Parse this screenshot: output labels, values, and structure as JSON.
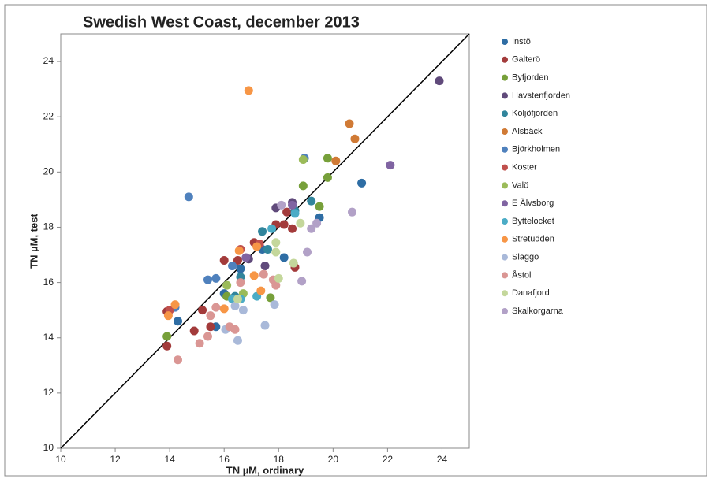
{
  "chart_data": {
    "type": "scatter",
    "title": "Swedish West Coast, december 2013",
    "x_label": "TN µM, ordinary",
    "y_label": "TN µM, test",
    "xlim": [
      10,
      25
    ],
    "ylim": [
      10,
      25
    ],
    "xticks": [
      10,
      12,
      14,
      16,
      18,
      20,
      22,
      24
    ],
    "yticks": [
      10,
      12,
      14,
      16,
      18,
      20,
      22,
      24
    ],
    "identity_line": true,
    "legend_position": "right",
    "series": [
      {
        "name": "Instö",
        "color": "#2E6DA4",
        "x": [
          21.05,
          19.5,
          18.2,
          16.6,
          17.4,
          14.3,
          16.0,
          15.7
        ],
        "values": [
          19.6,
          18.35,
          16.9,
          16.5,
          17.2,
          14.6,
          15.6,
          14.4
        ]
      },
      {
        "name": "Galterö",
        "color": "#A33B3B",
        "x": [
          18.3,
          17.9,
          18.2,
          18.5,
          16.5,
          16.0,
          15.2,
          14.9,
          15.5,
          13.9,
          13.9,
          18.6,
          17.1
        ],
        "values": [
          18.55,
          18.1,
          18.1,
          17.95,
          16.8,
          16.8,
          15.0,
          14.25,
          14.4,
          14.95,
          13.7,
          16.55,
          17.45
        ]
      },
      {
        "name": "Byfjorden",
        "color": "#77A03A",
        "x": [
          18.9,
          19.8,
          19.8,
          19.5,
          17.7,
          13.9,
          16.1
        ],
        "values": [
          19.5,
          20.5,
          19.8,
          18.75,
          15.45,
          14.05,
          15.5
        ]
      },
      {
        "name": "Havstenfjorden",
        "color": "#604A7B",
        "x": [
          23.9,
          18.5,
          17.9,
          17.5,
          16.9
        ],
        "values": [
          23.3,
          18.9,
          18.7,
          16.6,
          16.85
        ]
      },
      {
        "name": "Koljöfjorden",
        "color": "#31859C",
        "x": [
          19.2,
          18.6,
          17.4,
          17.6,
          16.6,
          16.4
        ],
        "values": [
          18.95,
          18.6,
          17.85,
          17.2,
          16.2,
          15.5
        ]
      },
      {
        "name": "Alsbäck",
        "color": "#D07A35",
        "x": [
          20.6,
          20.8,
          20.1
        ],
        "values": [
          21.75,
          21.2,
          20.4
        ]
      },
      {
        "name": "Björkholmen",
        "color": "#4F81BD",
        "x": [
          14.7,
          18.95,
          15.4,
          15.7,
          14.2,
          16.3
        ],
        "values": [
          19.1,
          20.5,
          16.1,
          16.15,
          15.1,
          16.6
        ]
      },
      {
        "name": "Koster",
        "color": "#C0504D",
        "x": [
          16.6,
          17.3,
          14.0
        ],
        "values": [
          17.2,
          17.4,
          15.0
        ]
      },
      {
        "name": "Valö",
        "color": "#9BBB59",
        "x": [
          18.9,
          16.7,
          16.1
        ],
        "values": [
          20.45,
          15.6,
          15.9
        ]
      },
      {
        "name": "E Älvsborg",
        "color": "#8064A2",
        "x": [
          22.1,
          18.5,
          16.8
        ],
        "values": [
          20.25,
          18.8,
          16.9
        ]
      },
      {
        "name": "Byttelocket",
        "color": "#4BACC6",
        "x": [
          18.6,
          17.75,
          17.2,
          16.6,
          16.3
        ],
        "values": [
          18.5,
          17.95,
          15.5,
          15.4,
          15.4
        ]
      },
      {
        "name": "Stretudden",
        "color": "#F79646",
        "x": [
          16.9,
          16.55,
          17.2,
          17.1,
          16.0,
          14.2,
          13.95,
          17.35
        ],
        "values": [
          22.95,
          17.15,
          17.3,
          16.25,
          15.05,
          15.2,
          14.8,
          15.7
        ]
      },
      {
        "name": "Släggö",
        "color": "#A9B9D9",
        "x": [
          16.5,
          17.5,
          16.05,
          17.85,
          16.7,
          16.4
        ],
        "values": [
          13.9,
          14.45,
          14.3,
          15.2,
          15.0,
          15.15
        ]
      },
      {
        "name": "Åstol",
        "color": "#DA9694",
        "x": [
          14.3,
          15.1,
          15.4,
          16.2,
          16.4,
          15.5,
          15.7,
          17.45,
          17.8,
          16.6,
          17.9
        ],
        "values": [
          13.2,
          13.8,
          14.05,
          14.4,
          14.3,
          14.8,
          15.1,
          16.3,
          16.1,
          16.0,
          15.9
        ]
      },
      {
        "name": "Danafjord",
        "color": "#C4D79B",
        "x": [
          18.8,
          17.9,
          18.55,
          17.9,
          18.0,
          16.5
        ],
        "values": [
          18.15,
          17.1,
          16.7,
          17.45,
          16.15,
          15.4
        ]
      },
      {
        "name": "Skalkorgarna",
        "color": "#B2A1C7",
        "x": [
          20.7,
          19.2,
          19.05,
          18.85,
          18.1,
          19.4
        ],
        "values": [
          18.55,
          17.95,
          17.1,
          16.05,
          18.8,
          18.15
        ]
      }
    ]
  }
}
